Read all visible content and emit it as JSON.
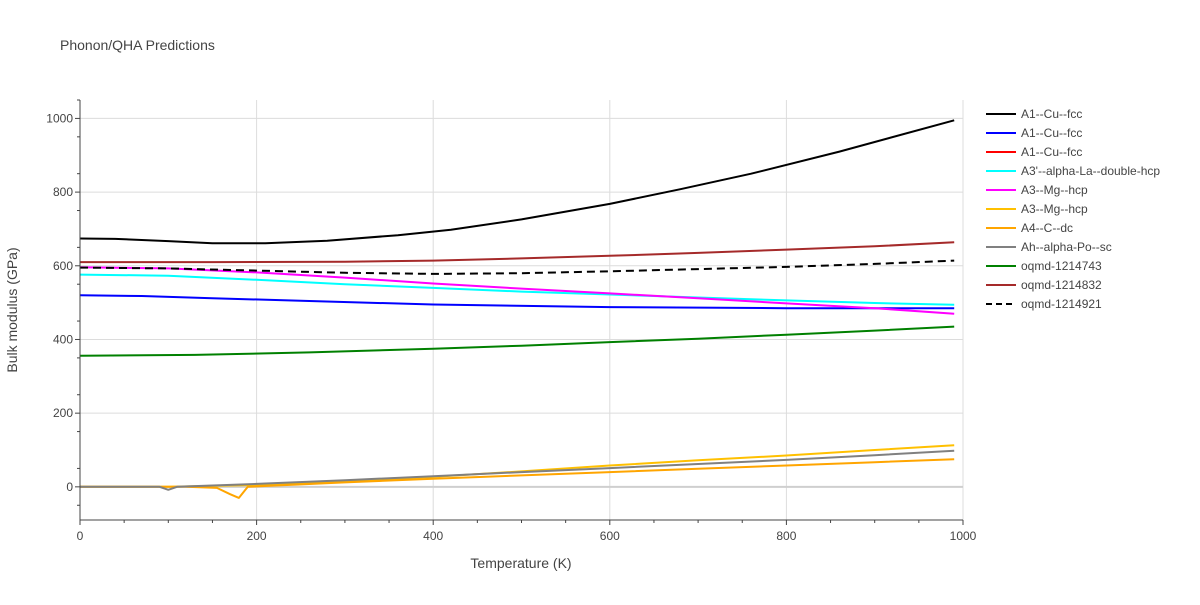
{
  "chart_data": {
    "type": "line",
    "title": "Phonon/QHA Predictions",
    "xlabel": "Temperature (K)",
    "ylabel": "Bulk modulus (GPa)",
    "xlim": [
      0,
      1000
    ],
    "ylim": [
      -90,
      1050
    ],
    "x_ticks": [
      0,
      200,
      400,
      600,
      800,
      1000
    ],
    "y_ticks": [
      0,
      200,
      400,
      600,
      800,
      1000
    ],
    "grid": true,
    "legend_position": "right",
    "series": [
      {
        "name": "A1--Cu--fcc",
        "color": "#000000",
        "dash": "solid",
        "points": [
          [
            0,
            674
          ],
          [
            40,
            673
          ],
          [
            100,
            667
          ],
          [
            150,
            661
          ],
          [
            210,
            661
          ],
          [
            280,
            668
          ],
          [
            360,
            683
          ],
          [
            420,
            698
          ],
          [
            500,
            726
          ],
          [
            600,
            768
          ],
          [
            680,
            808
          ],
          [
            760,
            850
          ],
          [
            860,
            910
          ],
          [
            990,
            995
          ]
        ]
      },
      {
        "name": "A1--Cu--fcc",
        "color": "#0000ff",
        "dash": "solid",
        "points": [
          [
            0,
            520
          ],
          [
            70,
            518
          ],
          [
            150,
            512
          ],
          [
            250,
            505
          ],
          [
            400,
            495
          ],
          [
            600,
            488
          ],
          [
            800,
            485
          ],
          [
            990,
            485
          ]
        ]
      },
      {
        "name": "A1--Cu--fcc",
        "color": "#ff0000",
        "dash": "solid",
        "points": []
      },
      {
        "name": "A3'--alpha-La--double-hcp",
        "color": "#00ffff",
        "dash": "solid",
        "points": [
          [
            0,
            576
          ],
          [
            100,
            573
          ],
          [
            200,
            562
          ],
          [
            300,
            550
          ],
          [
            400,
            540
          ],
          [
            500,
            530
          ],
          [
            600,
            522
          ],
          [
            700,
            514
          ],
          [
            800,
            506
          ],
          [
            900,
            499
          ],
          [
            990,
            494
          ]
        ]
      },
      {
        "name": "A3--Mg--hcp",
        "color": "#ff00ff",
        "dash": "solid",
        "points": [
          [
            0,
            596
          ],
          [
            100,
            593
          ],
          [
            200,
            582
          ],
          [
            300,
            568
          ],
          [
            400,
            552
          ],
          [
            500,
            538
          ],
          [
            600,
            525
          ],
          [
            700,
            512
          ],
          [
            800,
            498
          ],
          [
            900,
            485
          ],
          [
            990,
            470
          ]
        ]
      },
      {
        "name": "A3--Mg--hcp",
        "color": "#ffc000",
        "dash": "solid",
        "points": [
          [
            0,
            0
          ],
          [
            100,
            0
          ],
          [
            200,
            5
          ],
          [
            300,
            15
          ],
          [
            400,
            27
          ],
          [
            500,
            42
          ],
          [
            600,
            58
          ],
          [
            700,
            72
          ],
          [
            800,
            85
          ],
          [
            900,
            100
          ],
          [
            990,
            113
          ]
        ]
      },
      {
        "name": "A4--C--dc",
        "color": "#ffa500",
        "dash": "solid",
        "points": [
          [
            0,
            0
          ],
          [
            90,
            0
          ],
          [
            120,
            0
          ],
          [
            155,
            -3
          ],
          [
            170,
            -20
          ],
          [
            180,
            -30
          ],
          [
            190,
            0
          ],
          [
            300,
            12
          ],
          [
            400,
            22
          ],
          [
            500,
            31
          ],
          [
            600,
            40
          ],
          [
            700,
            49
          ],
          [
            800,
            58
          ],
          [
            900,
            67
          ],
          [
            990,
            75
          ]
        ]
      },
      {
        "name": "Ah--alpha-Po--sc",
        "color": "#808080",
        "dash": "solid",
        "points": [
          [
            0,
            0
          ],
          [
            90,
            0
          ],
          [
            100,
            -8
          ],
          [
            110,
            0
          ],
          [
            200,
            8
          ],
          [
            300,
            18
          ],
          [
            400,
            29
          ],
          [
            500,
            40
          ],
          [
            600,
            51
          ],
          [
            700,
            62
          ],
          [
            800,
            73
          ],
          [
            900,
            86
          ],
          [
            990,
            98
          ]
        ]
      },
      {
        "name": "oqmd-1214743",
        "color": "#008000",
        "dash": "solid",
        "points": [
          [
            0,
            356
          ],
          [
            130,
            358
          ],
          [
            260,
            365
          ],
          [
            400,
            375
          ],
          [
            500,
            383
          ],
          [
            600,
            393
          ],
          [
            700,
            402
          ],
          [
            800,
            413
          ],
          [
            900,
            424
          ],
          [
            990,
            435
          ]
        ]
      },
      {
        "name": "oqmd-1214832",
        "color": "#a52a2a",
        "dash": "solid",
        "points": [
          [
            0,
            610
          ],
          [
            150,
            610
          ],
          [
            300,
            611
          ],
          [
            400,
            614
          ],
          [
            500,
            620
          ],
          [
            600,
            627
          ],
          [
            700,
            635
          ],
          [
            800,
            644
          ],
          [
            900,
            653
          ],
          [
            990,
            664
          ]
        ]
      },
      {
        "name": "oqmd-1214921",
        "color": "#000000",
        "dash": "dash",
        "points": [
          [
            0,
            595
          ],
          [
            100,
            593
          ],
          [
            200,
            587
          ],
          [
            300,
            581
          ],
          [
            400,
            578
          ],
          [
            500,
            580
          ],
          [
            600,
            585
          ],
          [
            700,
            591
          ],
          [
            800,
            597
          ],
          [
            900,
            605
          ],
          [
            990,
            614
          ]
        ]
      }
    ]
  }
}
